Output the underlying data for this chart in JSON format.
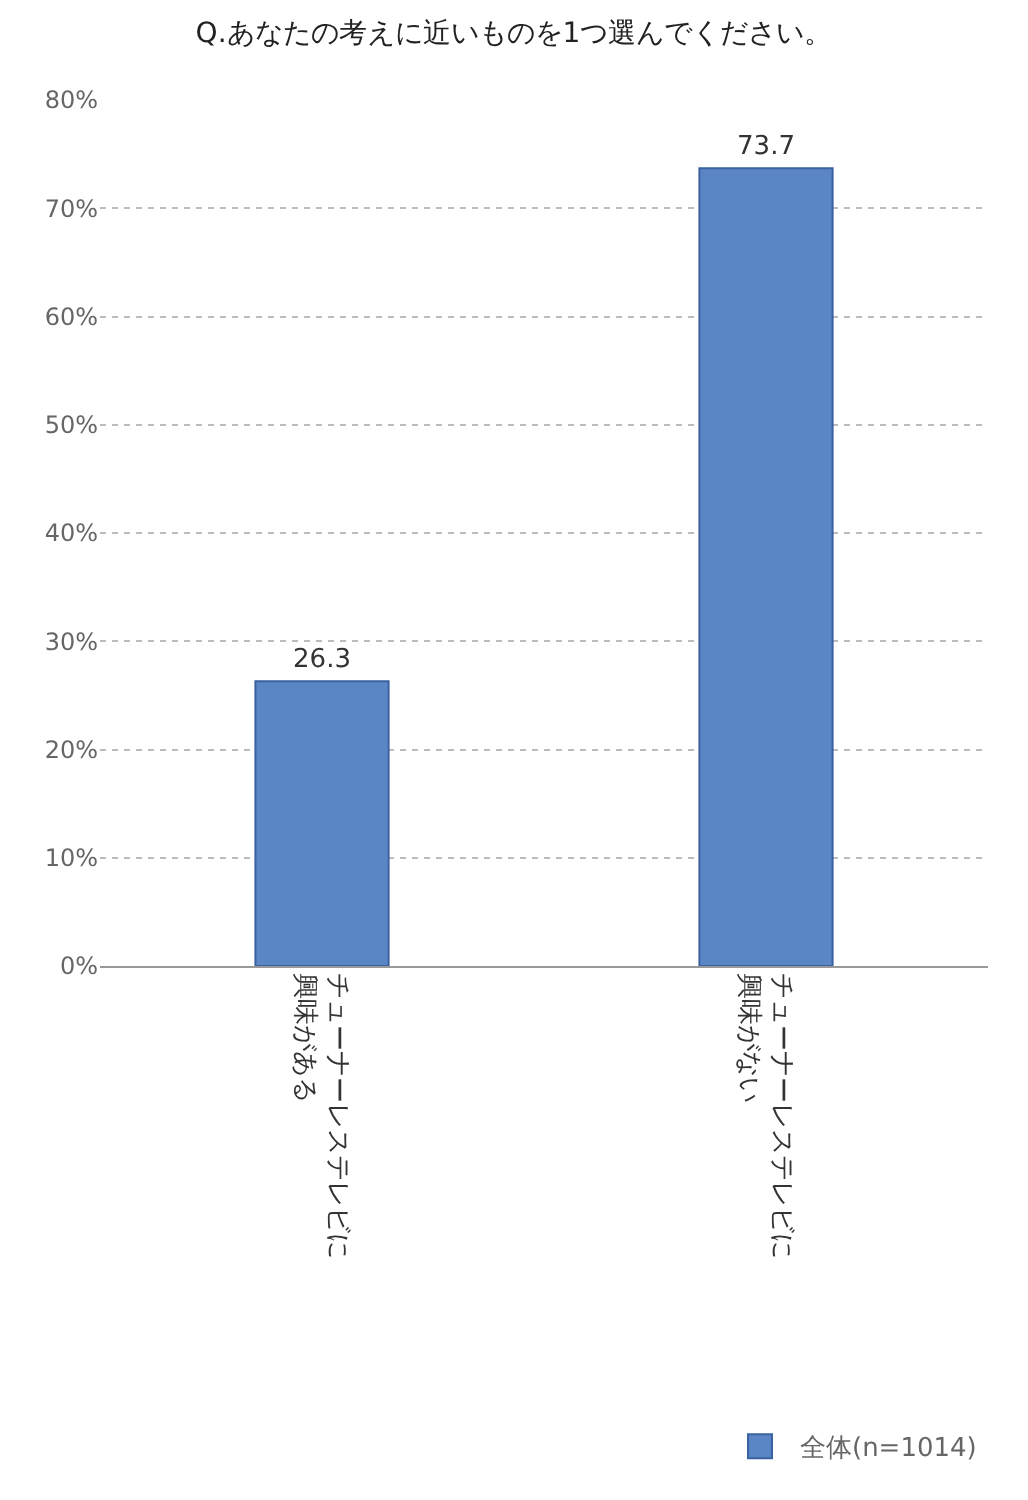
{
  "chart_data": {
    "type": "bar",
    "title": "Q.あなたの考えに近いものを1つ選んでください。",
    "categories": [
      "チューナーレステレビに興味がある",
      "チューナーレステレビに興味がない"
    ],
    "series": [
      {
        "name": "全体(n=1014)",
        "color": "#5b86c6",
        "values": [
          26.3,
          73.7
        ]
      }
    ],
    "ylim": [
      0,
      80
    ],
    "yticks": [
      {
        "value": 0,
        "label": "0%"
      },
      {
        "value": 10,
        "label": "10%"
      },
      {
        "value": 20,
        "label": "20%"
      },
      {
        "value": 30,
        "label": "30%"
      },
      {
        "value": 40,
        "label": "40%"
      },
      {
        "value": 50,
        "label": "50%"
      },
      {
        "value": 60,
        "label": "60%"
      },
      {
        "value": 70,
        "label": "70%"
      },
      {
        "value": 80,
        "label": "80%"
      }
    ],
    "grid": "y",
    "legend": "bottom right",
    "data_labels": true
  }
}
